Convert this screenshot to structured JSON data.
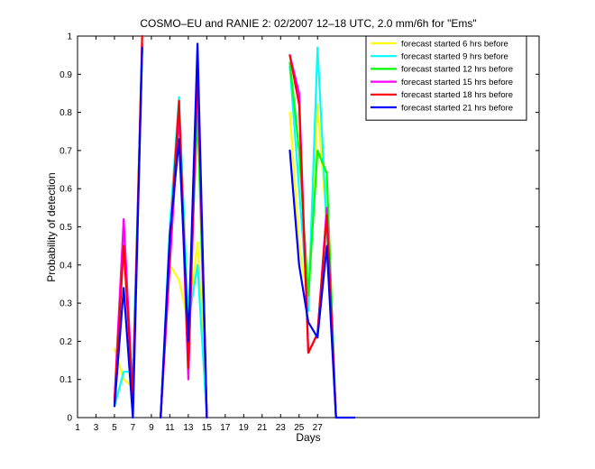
{
  "chart_data": {
    "type": "line",
    "title": "COSMO–EU and RANIE 2: 02/2007 12–18 UTC, 2.0 mm/6h for \"Ems\"",
    "xlabel": "Days",
    "ylabel": "Probability of detection",
    "xlim": [
      1,
      51
    ],
    "ylim": [
      0,
      1
    ],
    "x_ticks": [
      1,
      3,
      5,
      7,
      9,
      11,
      13,
      15,
      17,
      19,
      21,
      23,
      25,
      27
    ],
    "x_tick_labels": [
      "1",
      "3",
      "5",
      "7",
      "9",
      "11",
      "13",
      "15",
      "17",
      "19",
      "21",
      "23",
      "25",
      "27"
    ],
    "y_ticks": [
      0,
      0.1,
      0.2,
      0.3,
      0.4,
      0.5,
      0.6,
      0.7,
      0.8,
      0.9,
      1
    ],
    "y_tick_labels": [
      "0",
      "0.1",
      "0.2",
      "0.3",
      "0.4",
      "0.5",
      "0.6",
      "0.7",
      "0.8",
      "0.9",
      "1"
    ],
    "legend_position": "top-right",
    "series": [
      {
        "name": "forecast started 6 hrs before",
        "color": "#ffff00",
        "segments": [
          [
            [
              5,
              0.18
            ],
            [
              6,
              0.1
            ],
            [
              7,
              0.08
            ],
            [
              8,
              0.98
            ]
          ],
          [
            [
              10,
              0
            ],
            [
              11,
              0.4
            ],
            [
              12,
              0.36
            ],
            [
              13,
              0.25
            ],
            [
              14,
              0.46
            ],
            [
              15,
              0
            ]
          ],
          [
            [
              24,
              0.8
            ],
            [
              25,
              0.45
            ],
            [
              26,
              0.3
            ],
            [
              27,
              0.82
            ],
            [
              28,
              0.5
            ],
            [
              29,
              0
            ]
          ]
        ]
      },
      {
        "name": "forecast started 9 hrs before",
        "color": "#00ffff",
        "segments": [
          [
            [
              5,
              0.03
            ],
            [
              6,
              0.12
            ],
            [
              7,
              0.12
            ],
            [
              8,
              0.96
            ]
          ],
          [
            [
              10,
              0
            ],
            [
              11,
              0.5
            ],
            [
              12,
              0.84
            ],
            [
              13,
              0.25
            ],
            [
              14,
              0.4
            ],
            [
              15,
              0
            ]
          ],
          [
            [
              24,
              0.92
            ],
            [
              25,
              0.6
            ],
            [
              26,
              0.28
            ],
            [
              27,
              0.97
            ],
            [
              28,
              0.5
            ],
            [
              29,
              0
            ]
          ]
        ]
      },
      {
        "name": "forecast started 12 hrs before",
        "color": "#00ff00",
        "segments": [
          [
            [
              5,
              0.03
            ],
            [
              6,
              0.48
            ],
            [
              7,
              0.05
            ],
            [
              8,
              0.97
            ]
          ],
          [
            [
              10,
              0
            ],
            [
              11,
              0.45
            ],
            [
              12,
              0.8
            ],
            [
              13,
              0.2
            ],
            [
              14,
              0.8
            ],
            [
              15,
              0
            ]
          ],
          [
            [
              24,
              0.93
            ],
            [
              25,
              0.7
            ],
            [
              26,
              0.32
            ],
            [
              27,
              0.7
            ],
            [
              28,
              0.64
            ],
            [
              29,
              0
            ]
          ]
        ]
      },
      {
        "name": "forecast started 15 hrs before",
        "color": "#ff00ff",
        "segments": [
          [
            [
              5,
              0.05
            ],
            [
              6,
              0.52
            ],
            [
              7,
              0.05
            ],
            [
              8,
              0.98
            ]
          ],
          [
            [
              10,
              0
            ],
            [
              11,
              0.4
            ],
            [
              12,
              0.8
            ],
            [
              13,
              0.1
            ],
            [
              14,
              0.9
            ],
            [
              15,
              0
            ]
          ],
          [
            [
              24,
              0.95
            ],
            [
              25,
              0.85
            ],
            [
              26,
              0.17
            ],
            [
              27,
              0.22
            ],
            [
              28,
              0.55
            ],
            [
              29,
              0
            ]
          ]
        ]
      },
      {
        "name": "forecast started 18 hrs before",
        "color": "#ff0000",
        "segments": [
          [
            [
              5,
              0.04
            ],
            [
              6,
              0.45
            ],
            [
              7,
              0.05
            ],
            [
              8,
              1.0
            ]
          ],
          [
            [
              10,
              0
            ],
            [
              11,
              0.45
            ],
            [
              12,
              0.83
            ],
            [
              13,
              0.13
            ],
            [
              14,
              0.93
            ],
            [
              15,
              0
            ]
          ],
          [
            [
              24,
              0.95
            ],
            [
              25,
              0.82
            ],
            [
              26,
              0.17
            ],
            [
              27,
              0.22
            ],
            [
              28,
              0.53
            ],
            [
              29,
              0
            ]
          ]
        ]
      },
      {
        "name": "forecast started 21 hrs before",
        "color": "#0000ff",
        "segments": [
          [
            [
              5,
              0.03
            ],
            [
              6,
              0.34
            ],
            [
              7,
              0
            ],
            [
              8,
              0.97
            ]
          ],
          [
            [
              10,
              0
            ],
            [
              11,
              0.48
            ],
            [
              12,
              0.73
            ],
            [
              13,
              0.2
            ],
            [
              14,
              0.98
            ],
            [
              15,
              0
            ]
          ],
          [
            [
              24,
              0.7
            ],
            [
              25,
              0.4
            ],
            [
              26,
              0.25
            ],
            [
              27,
              0.21
            ],
            [
              28,
              0.45
            ],
            [
              29,
              0
            ],
            [
              31,
              0
            ]
          ]
        ]
      }
    ]
  }
}
